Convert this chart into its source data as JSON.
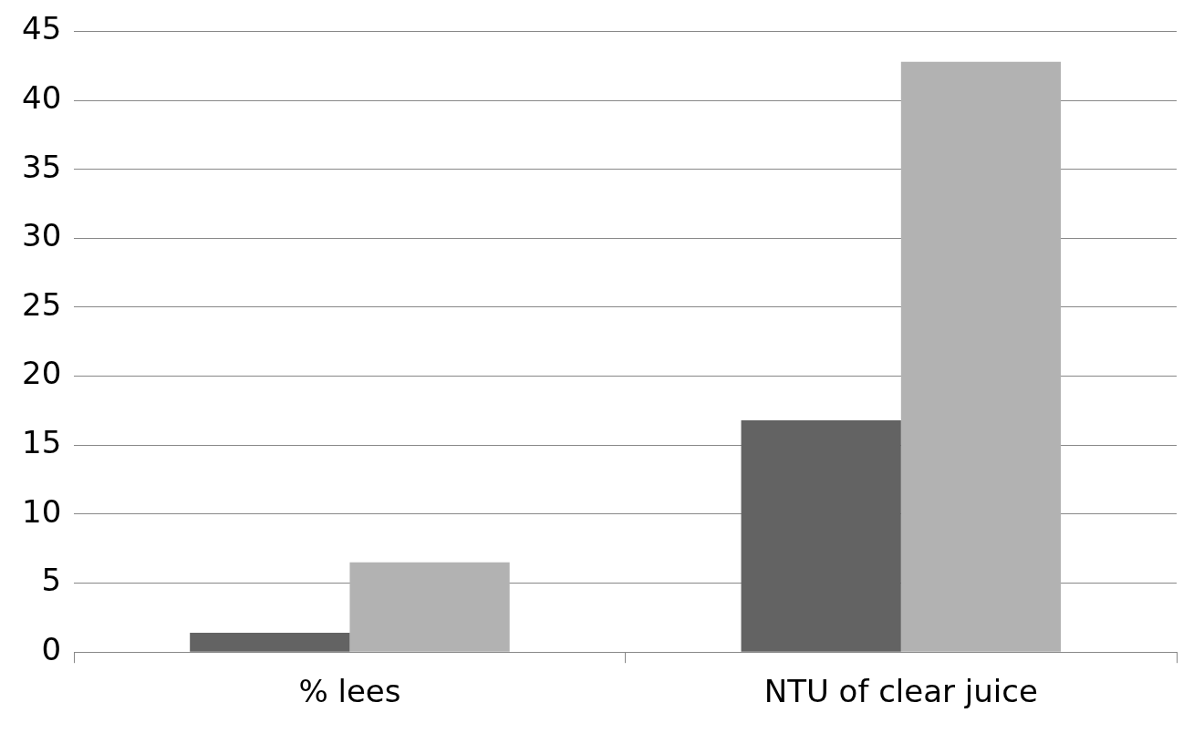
{
  "chart_data": {
    "type": "bar",
    "categories": [
      "% lees",
      "NTU of clear juice"
    ],
    "series": [
      {
        "color": "#636363",
        "values": [
          1.4,
          16.8
        ]
      },
      {
        "color": "#b2b2b2",
        "values": [
          6.5,
          42.8
        ]
      }
    ],
    "ylim": [
      0,
      45
    ],
    "yticks": [
      0,
      5,
      10,
      15,
      20,
      25,
      30,
      35,
      40,
      45
    ],
    "grid": "y",
    "legend": false
  }
}
